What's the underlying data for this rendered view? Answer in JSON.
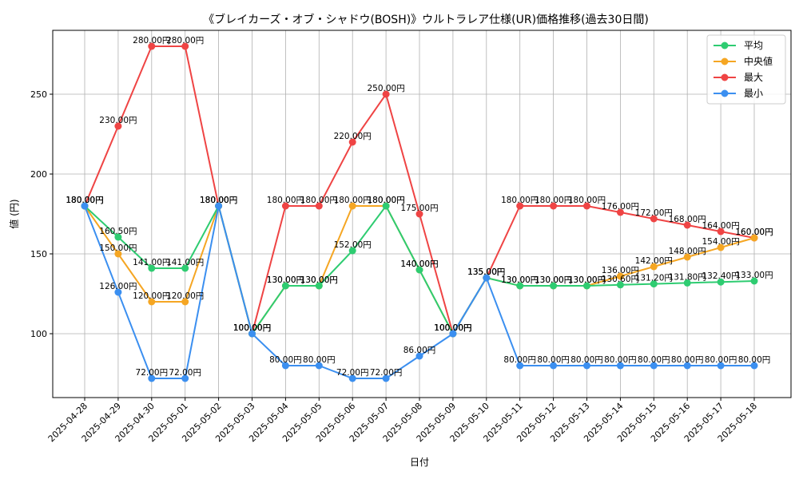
{
  "chart_data": {
    "type": "line",
    "title": "《ブレイカーズ・オブ・シャドウ(BOSH)》ウルトラレア仕様(UR)価格推移(過去30日間)",
    "xlabel": "日付",
    "ylabel": "値 (円)",
    "ylim": [
      60,
      290
    ],
    "yticks": [
      100,
      150,
      200,
      250
    ],
    "grid": true,
    "legend_position": "top-right",
    "value_suffix": "円",
    "categories": [
      "2025-04-28",
      "2025-04-29",
      "2025-04-30",
      "2025-05-01",
      "2025-05-02",
      "2025-05-03",
      "2025-05-04",
      "2025-05-05",
      "2025-05-06",
      "2025-05-07",
      "2025-05-08",
      "2025-05-09",
      "2025-05-10",
      "2025-05-11",
      "2025-05-12",
      "2025-05-13",
      "2025-05-14",
      "2025-05-15",
      "2025-05-16",
      "2025-05-17",
      "2025-05-18"
    ],
    "series": [
      {
        "name": "平均",
        "color": "#2ecc71",
        "values": [
          180,
          160.5,
          141,
          141,
          180,
          100,
          130,
          130,
          152,
          180,
          140,
          100,
          135,
          130,
          130,
          130,
          130.6,
          131.2,
          131.8,
          132.4,
          133
        ]
      },
      {
        "name": "中央値",
        "color": "#f5a623",
        "values": [
          180,
          150,
          120,
          120,
          180,
          100,
          130,
          130,
          180,
          180,
          140,
          100,
          135,
          130,
          130,
          130,
          136,
          142,
          148,
          154,
          160
        ]
      },
      {
        "name": "最大",
        "color": "#ef4444",
        "values": [
          180,
          230,
          280,
          280,
          180,
          100,
          180,
          180,
          220,
          250,
          175,
          100,
          135,
          180,
          180,
          180,
          176,
          172,
          168,
          164,
          160
        ]
      },
      {
        "name": "最小",
        "color": "#3b8ff0",
        "values": [
          180,
          126,
          72,
          72,
          180,
          100,
          80,
          80,
          72,
          72,
          86,
          100,
          135,
          80,
          80,
          80,
          80,
          80,
          80,
          80,
          80
        ]
      }
    ]
  }
}
